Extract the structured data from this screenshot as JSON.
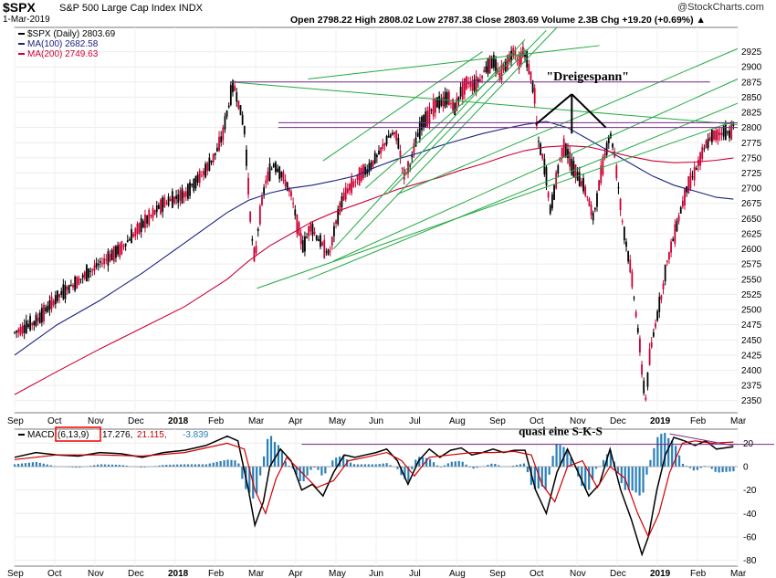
{
  "header": {
    "symbol": "$SPX",
    "name": "S&P 500 Large Cap Index",
    "exchange": "INDX",
    "date": "1-Mar-2019",
    "ohlc_line": "Open 2798.22  High 2808.02  Low 2787.38  Close 2803.69  Volume 2.3B  Chg +19.20 (+0.69%) ▲",
    "brand": "@StockCharts.com"
  },
  "colors": {
    "up": "#000000",
    "down": "#cc0033",
    "ma100": "#1a237e",
    "ma200": "#cc0033",
    "trend": "#22aa44",
    "level": "#7a2a8a",
    "hist": "#2a7fb8"
  },
  "chart_data": [
    {
      "type": "line",
      "title": "$SPX (Daily) 2803.69",
      "legend": [
        {
          "label": "$SPX (Daily) 2803.69"
        },
        {
          "label": "MA(100) 2682.58"
        },
        {
          "label": "MA(200) 2749.63"
        }
      ],
      "ylim": [
        2330,
        2965
      ],
      "yticks": [
        2350,
        2375,
        2400,
        2425,
        2450,
        2475,
        2500,
        2525,
        2550,
        2575,
        2600,
        2625,
        2650,
        2675,
        2700,
        2725,
        2750,
        2775,
        2800,
        2825,
        2850,
        2875,
        2900,
        2925
      ],
      "x_ticks": [
        "Sep",
        "Oct",
        "Nov",
        "Dec",
        "2018",
        "Feb",
        "Mar",
        "Apr",
        "May",
        "Jun",
        "Jul",
        "Aug",
        "Sep",
        "Oct",
        "Nov",
        "Dec",
        "2019",
        "Feb",
        "Mar"
      ],
      "price_path": [
        [
          0,
          2462
        ],
        [
          1,
          2480
        ],
        [
          2,
          2520
        ],
        [
          3,
          2548
        ],
        [
          4,
          2575
        ],
        [
          5,
          2600
        ],
        [
          6,
          2640
        ],
        [
          7,
          2675
        ],
        [
          8,
          2690
        ],
        [
          9,
          2730
        ],
        [
          9.5,
          2760
        ],
        [
          9.8,
          2790
        ],
        [
          10,
          2825
        ],
        [
          10.3,
          2872
        ],
        [
          10.5,
          2845
        ],
        [
          10.8,
          2800
        ],
        [
          11,
          2700
        ],
        [
          11.15,
          2620
        ],
        [
          11.3,
          2580
        ],
        [
          11.5,
          2650
        ],
        [
          11.8,
          2710
        ],
        [
          12.2,
          2740
        ],
        [
          12.6,
          2720
        ],
        [
          13,
          2690
        ],
        [
          13.3,
          2640
        ],
        [
          13.6,
          2600
        ],
        [
          13.9,
          2640
        ],
        [
          14.2,
          2620
        ],
        [
          14.5,
          2605
        ],
        [
          14.8,
          2590
        ],
        [
          15.1,
          2640
        ],
        [
          15.4,
          2680
        ],
        [
          15.7,
          2700
        ],
        [
          16,
          2710
        ],
        [
          16.3,
          2725
        ],
        [
          16.6,
          2730
        ],
        [
          16.9,
          2745
        ],
        [
          17.2,
          2760
        ],
        [
          17.5,
          2780
        ],
        [
          17.8,
          2790
        ],
        [
          18,
          2785
        ],
        [
          18.3,
          2720
        ],
        [
          18.6,
          2740
        ],
        [
          18.9,
          2780
        ],
        [
          19.2,
          2810
        ],
        [
          19.5,
          2820
        ],
        [
          19.8,
          2840
        ],
        [
          20.1,
          2840
        ],
        [
          20.4,
          2850
        ],
        [
          20.7,
          2830
        ],
        [
          21,
          2860
        ],
        [
          21.3,
          2875
        ],
        [
          21.6,
          2870
        ],
        [
          21.9,
          2880
        ],
        [
          22.2,
          2900
        ],
        [
          22.5,
          2910
        ],
        [
          22.8,
          2885
        ],
        [
          23.1,
          2905
        ],
        [
          23.3,
          2915
        ],
        [
          23.5,
          2930
        ],
        [
          23.7,
          2905
        ],
        [
          23.9,
          2925
        ],
        [
          24.1,
          2910
        ],
        [
          24.3,
          2880
        ],
        [
          24.45,
          2855
        ],
        [
          24.6,
          2780
        ],
        [
          24.8,
          2755
        ],
        [
          25,
          2720
        ],
        [
          25.2,
          2660
        ],
        [
          25.4,
          2700
        ],
        [
          25.6,
          2740
        ],
        [
          25.8,
          2770
        ],
        [
          26,
          2760
        ],
        [
          26.2,
          2735
        ],
        [
          26.5,
          2720
        ],
        [
          26.8,
          2700
        ],
        [
          27,
          2680
        ],
        [
          27.2,
          2650
        ],
        [
          27.4,
          2685
        ],
        [
          27.6,
          2730
        ],
        [
          27.8,
          2760
        ],
        [
          28,
          2790
        ],
        [
          28.2,
          2760
        ],
        [
          28.4,
          2700
        ],
        [
          28.6,
          2640
        ],
        [
          28.8,
          2600
        ],
        [
          29,
          2560
        ],
        [
          29.2,
          2500
        ],
        [
          29.4,
          2440
        ],
        [
          29.55,
          2380
        ],
        [
          29.7,
          2350
        ],
        [
          29.85,
          2420
        ],
        [
          30.1,
          2470
        ],
        [
          30.4,
          2520
        ],
        [
          30.7,
          2580
        ],
        [
          31,
          2620
        ],
        [
          31.3,
          2660
        ],
        [
          31.6,
          2700
        ],
        [
          31.9,
          2720
        ],
        [
          32.2,
          2745
        ],
        [
          32.5,
          2770
        ],
        [
          32.8,
          2785
        ],
        [
          33.1,
          2790
        ],
        [
          33.4,
          2793
        ],
        [
          33.6,
          2790
        ],
        [
          33.8,
          2803
        ]
      ],
      "ma100": [
        2682.58,
        [
          0,
          2425
        ],
        [
          2,
          2475
        ],
        [
          4,
          2515
        ],
        [
          6,
          2560
        ],
        [
          8,
          2610
        ],
        [
          10,
          2660
        ],
        [
          11,
          2680
        ],
        [
          12,
          2692
        ],
        [
          13,
          2700
        ],
        [
          14,
          2705
        ],
        [
          15,
          2712
        ],
        [
          16,
          2720
        ],
        [
          17,
          2735
        ],
        [
          18,
          2748
        ],
        [
          19,
          2758
        ],
        [
          20,
          2770
        ],
        [
          21,
          2780
        ],
        [
          22,
          2790
        ],
        [
          23,
          2798
        ],
        [
          24,
          2805
        ],
        [
          25,
          2810
        ],
        [
          26,
          2800
        ],
        [
          27,
          2780
        ],
        [
          28,
          2760
        ],
        [
          29,
          2740
        ],
        [
          30,
          2720
        ],
        [
          31,
          2705
        ],
        [
          32,
          2695
        ],
        [
          33,
          2685
        ],
        [
          33.8,
          2682
        ]
      ],
      "ma200": [
        2749.63,
        [
          0,
          2360
        ],
        [
          2,
          2398
        ],
        [
          4,
          2435
        ],
        [
          6,
          2470
        ],
        [
          8,
          2505
        ],
        [
          10,
          2550
        ],
        [
          11,
          2580
        ],
        [
          12,
          2605
        ],
        [
          13,
          2625
        ],
        [
          14,
          2645
        ],
        [
          15,
          2660
        ],
        [
          16,
          2672
        ],
        [
          17,
          2685
        ],
        [
          18,
          2698
        ],
        [
          19,
          2708
        ],
        [
          20,
          2718
        ],
        [
          21,
          2730
        ],
        [
          22,
          2740
        ],
        [
          23,
          2752
        ],
        [
          24,
          2762
        ],
        [
          25,
          2768
        ],
        [
          26,
          2770
        ],
        [
          27,
          2768
        ],
        [
          28,
          2760
        ],
        [
          29,
          2752
        ],
        [
          30,
          2745
        ],
        [
          31,
          2742
        ],
        [
          32,
          2743
        ],
        [
          33,
          2746
        ],
        [
          33.8,
          2749.6
        ]
      ],
      "annotation": "\"Dreigespann\""
    },
    {
      "type": "line",
      "title": "MACD(6,13,9) 17.276, 21.115, -3.839",
      "legend_prefix": "MACD",
      "legend_params": "(6,13,9)",
      "legend_values": [
        " 17.276,",
        " 21.115,",
        " -3.839"
      ],
      "ylim": [
        -85,
        32
      ],
      "yticks": [
        20,
        0,
        -20,
        -40,
        -60,
        -80
      ],
      "macd": [
        [
          0,
          8
        ],
        [
          1,
          12
        ],
        [
          2,
          10
        ],
        [
          3,
          9
        ],
        [
          4,
          12
        ],
        [
          5,
          11
        ],
        [
          6,
          8
        ],
        [
          7,
          12
        ],
        [
          8,
          14
        ],
        [
          9,
          18
        ],
        [
          10,
          26
        ],
        [
          10.5,
          22
        ],
        [
          11,
          -20
        ],
        [
          11.3,
          -50
        ],
        [
          11.7,
          -30
        ],
        [
          12,
          0
        ],
        [
          12.5,
          15
        ],
        [
          13,
          5
        ],
        [
          13.5,
          -20
        ],
        [
          14,
          -15
        ],
        [
          14.5,
          -25
        ],
        [
          15,
          -5
        ],
        [
          15.5,
          10
        ],
        [
          16,
          8
        ],
        [
          16.5,
          10
        ],
        [
          17,
          12
        ],
        [
          17.5,
          15
        ],
        [
          18,
          5
        ],
        [
          18.5,
          -15
        ],
        [
          19,
          5
        ],
        [
          19.5,
          15
        ],
        [
          20,
          8
        ],
        [
          20.5,
          14
        ],
        [
          21,
          16
        ],
        [
          21.5,
          10
        ],
        [
          22,
          12
        ],
        [
          22.5,
          15
        ],
        [
          23,
          12
        ],
        [
          23.5,
          14
        ],
        [
          24,
          14
        ],
        [
          24.5,
          -20
        ],
        [
          25,
          -40
        ],
        [
          25.5,
          -5
        ],
        [
          26,
          15
        ],
        [
          26.5,
          -5
        ],
        [
          27,
          -25
        ],
        [
          27.5,
          -15
        ],
        [
          28,
          15
        ],
        [
          28.5,
          -20
        ],
        [
          29,
          -45
        ],
        [
          29.5,
          -75
        ],
        [
          29.8,
          -60
        ],
        [
          30.2,
          -20
        ],
        [
          30.6,
          10
        ],
        [
          31,
          25
        ],
        [
          31.5,
          22
        ],
        [
          32,
          18
        ],
        [
          32.5,
          22
        ],
        [
          33,
          15
        ],
        [
          33.8,
          17
        ]
      ],
      "signal": [
        [
          0,
          6
        ],
        [
          2,
          10
        ],
        [
          4,
          10
        ],
        [
          6,
          9
        ],
        [
          8,
          12
        ],
        [
          10,
          20
        ],
        [
          10.8,
          15
        ],
        [
          11.3,
          -20
        ],
        [
          11.8,
          -40
        ],
        [
          12.3,
          -10
        ],
        [
          12.8,
          8
        ],
        [
          13.5,
          -5
        ],
        [
          14.2,
          -18
        ],
        [
          15,
          -12
        ],
        [
          15.7,
          5
        ],
        [
          16.5,
          8
        ],
        [
          17.5,
          12
        ],
        [
          18.2,
          5
        ],
        [
          18.8,
          -8
        ],
        [
          19.5,
          8
        ],
        [
          20.5,
          10
        ],
        [
          21.5,
          12
        ],
        [
          22.5,
          12
        ],
        [
          23.5,
          13
        ],
        [
          24.3,
          10
        ],
        [
          24.8,
          -15
        ],
        [
          25.4,
          -30
        ],
        [
          26,
          0
        ],
        [
          26.7,
          5
        ],
        [
          27.4,
          -18
        ],
        [
          28,
          0
        ],
        [
          28.7,
          -10
        ],
        [
          29.3,
          -40
        ],
        [
          29.8,
          -60
        ],
        [
          30.3,
          -40
        ],
        [
          30.8,
          -5
        ],
        [
          31.4,
          20
        ],
        [
          32,
          22
        ],
        [
          32.8,
          20
        ],
        [
          33.8,
          21
        ]
      ],
      "annotation": "quasi eine S-K-S"
    }
  ]
}
